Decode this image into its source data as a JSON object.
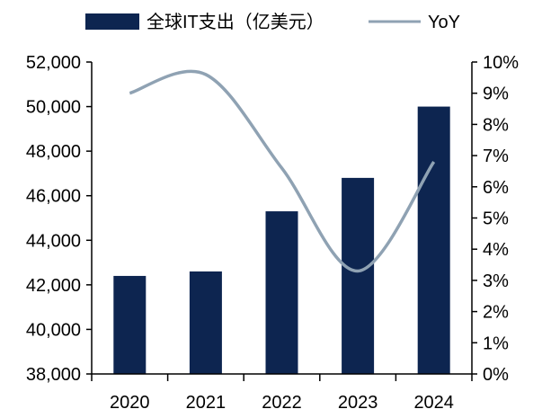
{
  "chart_data": {
    "type": "bar",
    "categories": [
      "2020",
      "2021",
      "2022",
      "2023",
      "2024"
    ],
    "series": [
      {
        "name": "全球IT支出（亿美元）",
        "type": "bar",
        "axis": "left",
        "values": [
          42400,
          42600,
          45300,
          46800,
          50000
        ]
      },
      {
        "name": "YoY",
        "type": "line",
        "axis": "right",
        "values": [
          0.09,
          0.096,
          0.066,
          0.033,
          0.068
        ]
      }
    ],
    "y_left": {
      "min": 38000,
      "max": 52000,
      "ticks": [
        "38,000",
        "40,000",
        "42,000",
        "44,000",
        "46,000",
        "48,000",
        "50,000",
        "52,000"
      ]
    },
    "y_right": {
      "min": 0,
      "max": 0.1,
      "ticks": [
        "0%",
        "1%",
        "2%",
        "3%",
        "4%",
        "5%",
        "6%",
        "7%",
        "8%",
        "9%",
        "10%"
      ]
    },
    "grid": false,
    "legend_position": "top",
    "colors": {
      "bar": "#0d2550",
      "line": "#8fa2b3",
      "axis": "#000000"
    }
  }
}
